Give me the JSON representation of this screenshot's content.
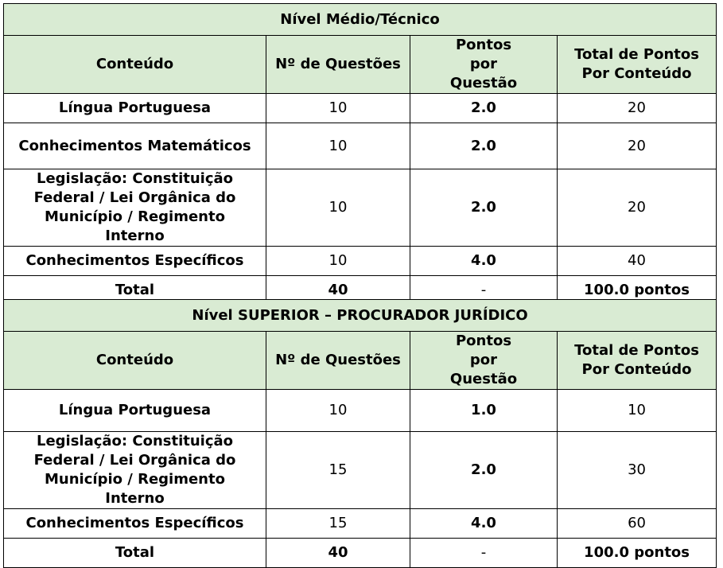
{
  "table1": {
    "title": "Nível Médio/Técnico",
    "headers": [
      "Conteúdo",
      "Nº de Questões",
      "Pontos por Questão",
      "Total de Pontos Por Conteúdo"
    ],
    "rows": [
      {
        "conteudo": "Língua Portuguesa",
        "questoes": "10",
        "pontos": "2.0",
        "total": "20"
      },
      {
        "conteudo": "Conhecimentos Matemáticos",
        "questoes": "10",
        "pontos": "2.0",
        "total": "20"
      },
      {
        "conteudo": "Legislação: Constituição Federal / Lei Orgânica do Município / Regimento Interno",
        "questoes": "10",
        "pontos": "2.0",
        "total": "20"
      },
      {
        "conteudo": "Conhecimentos Específicos",
        "questoes": "10",
        "pontos": "4.0",
        "total": "40"
      }
    ],
    "total": {
      "label": "Total",
      "questoes": "40",
      "pontos": "-",
      "total": "100.0 pontos"
    }
  },
  "table2": {
    "title": "Nível SUPERIOR – PROCURADOR JURÍDICO",
    "headers": [
      "Conteúdo",
      "Nº de Questões",
      "Pontos por Questão",
      "Total de Pontos Por Conteúdo"
    ],
    "rows": [
      {
        "conteudo": "Língua Portuguesa",
        "questoes": "10",
        "pontos": "1.0",
        "total": "10"
      },
      {
        "conteudo": "Legislação: Constituição Federal / Lei Orgânica do Município / Regimento Interno",
        "questoes": "15",
        "pontos": "2.0",
        "total": "30"
      },
      {
        "conteudo": "Conhecimentos Específicos",
        "questoes": "15",
        "pontos": "4.0",
        "total": "60"
      }
    ],
    "total": {
      "label": "Total",
      "questoes": "40",
      "pontos": "-",
      "total": "100.0 pontos"
    }
  }
}
